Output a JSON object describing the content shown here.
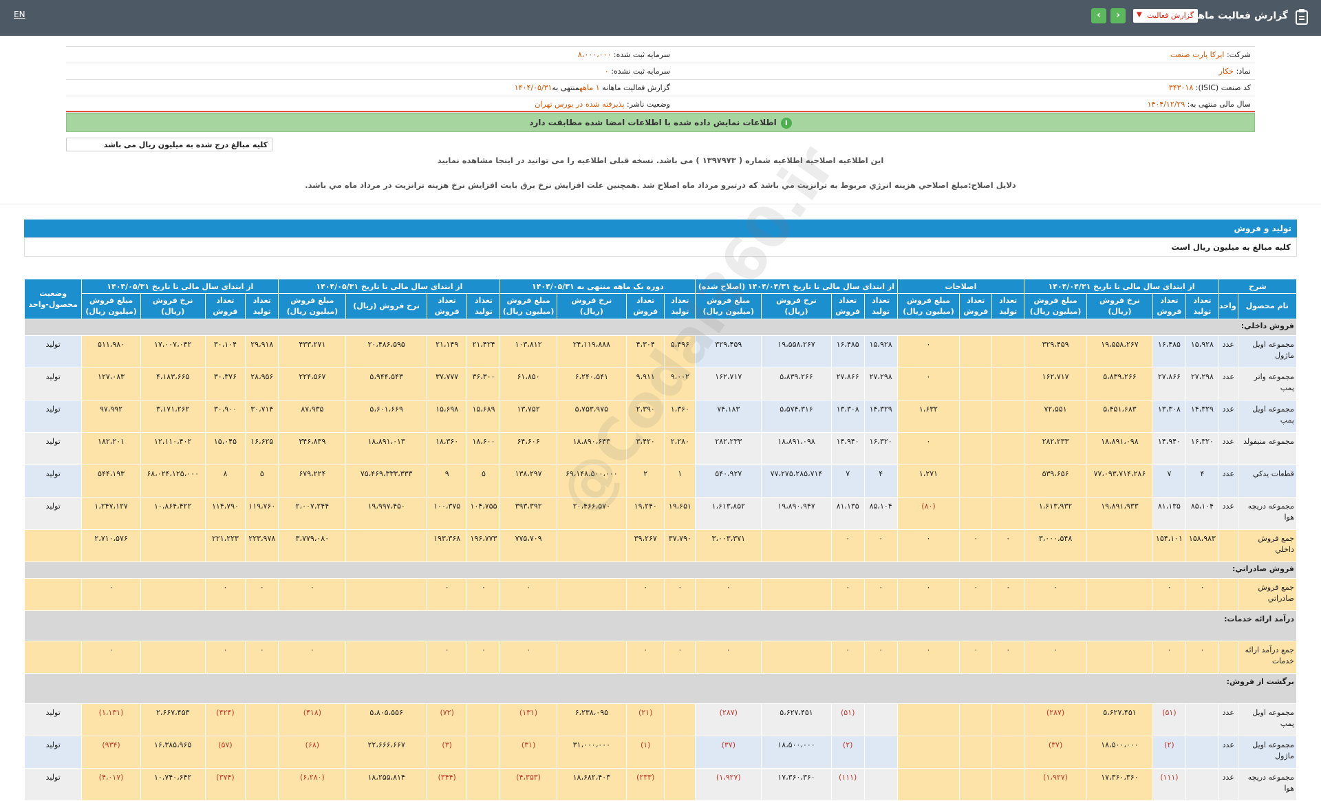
{
  "header": {
    "title": "گزارش فعالیت ماهانه",
    "report_select": "گزارش فعالیت",
    "lang": "EN"
  },
  "info": {
    "company_label": "شرکت:",
    "company": "ایرکا پارت صنعت",
    "capital_reg_label": "سرمایه ثبت شده:",
    "capital_reg": "۸،۰۰۰،۰۰۰",
    "symbol_label": "نماد:",
    "symbol": "خکار",
    "capital_unreg_label": "سرمایه ثبت نشده:",
    "capital_unreg": "۰",
    "isic_label": "کد صنعت (ISIC):",
    "isic": "۳۴۳۰۱۸",
    "period_label": "گزارش فعالیت ماهانه",
    "period_value": "۱ ماهه",
    "period_end_label": "منتهی به",
    "period_end": "۱۴۰۴/۰۵/۳۱",
    "status_label": "وضعیت ناشر:",
    "status": "پذیرفته شده در بورس تهران",
    "fy_label": "سال مالی منتهی به:",
    "fy": "۱۴۰۴/۱۲/۲۹"
  },
  "notice": {
    "match": "اطلاعات نمایش داده شده با اطلاعات امضا شده مطابقت دارد",
    "units": "کلیه مبالغ درج شده به میلیون ریال می باشد",
    "correction": "این اطلاعیه اصلاحیه اطلاعیه شماره ( ۱۳۹۷۹۷۳ ) می باشد. نسخه قبلی اطلاعیه را می توانید در اینجا مشاهده نمایید",
    "reason": "دلایل اصلاح:مبلغ اصلاحي هزينه انرژي مربوط به ترانزيت مي باشد که درتيرو مرداد ماه اصلاح شد .همچنين علت افزايش نرخ برق بابت افزايش نرخ هزينه ترانزيت در مرداد ماه مي باشد."
  },
  "section": {
    "title": "تولید و فروش",
    "subtitle": "کلیه مبالغ به میلیون ریال است"
  },
  "watermark": "@Codal360.ir",
  "table": {
    "groups": [
      "شرح",
      "از ابتدای سال مالی تا تاریخ ۱۴۰۴/۰۴/۳۱",
      "اصلاحات",
      "از ابتدای سال مالی تا تاریخ ۱۴۰۴/۰۴/۳۱ (اصلاح شده)",
      "دوره یک ماهه منتهی به ۱۴۰۴/۰۵/۳۱",
      "از ابتدای سال مالی تا تاریخ ۱۴۰۴/۰۵/۳۱",
      "از ابتدای سال مالی تا تاریخ ۱۴۰۳/۰۵/۳۱",
      "وضعیت محصول-واحد"
    ],
    "subheaders": [
      "نام محصول",
      "واحد",
      "تعداد تولید",
      "تعداد فروش",
      "نرخ فروش (ریال)",
      "مبلغ فروش (میلیون ریال)",
      "تعداد تولید",
      "تعداد فروش",
      "مبلغ فروش (میلیون ریال)",
      "تعداد تولید",
      "تعداد فروش",
      "نرخ فروش (ریال)",
      "مبلغ فروش (میلیون ریال)",
      "تعداد تولید",
      "تعداد فروش",
      "نرخ فروش (ریال)",
      "مبلغ فروش (میلیون ریال)",
      "تعداد تولید",
      "تعداد فروش",
      "نرخ فروش (ریال)",
      "مبلغ فروش (میلیون ریال)",
      "تعداد تولید",
      "تعداد فروش",
      "نرخ فروش (ریال)",
      "مبلغ فروش (میلیون ریال)"
    ],
    "cat_domestic": "فروش داخلي:",
    "cat_export": "فروش صادراتي:",
    "cat_services": "درآمد ارائه خدمات:",
    "cat_returns": "برگشت از فروش:",
    "rows": [
      [
        "مجموعه اویل ماژول",
        "عدد",
        "۱۵،۹۲۸",
        "۱۶،۴۸۵",
        "۱۹،۵۵۸،۲۶۷",
        "۳۲۹،۴۵۹",
        "",
        "",
        "۰",
        "۱۵،۹۲۸",
        "۱۶،۴۸۵",
        "۱۹،۵۵۸،۲۶۷",
        "۳۲۹،۴۵۹",
        "۵،۴۹۶",
        "۴،۳۰۴",
        "۲۴،۱۱۹،۸۸۸",
        "۱۰۳،۸۱۲",
        "۲۱،۴۲۴",
        "۲۱،۱۴۹",
        "۲۰،۴۸۶،۵۹۵",
        "۴۳۳،۲۷۱",
        "۲۹،۹۱۸",
        "۳۰،۱۰۴",
        "۱۷،۰۰۷،۰۴۲",
        "۵۱۱،۹۸۰",
        "تولید"
      ],
      [
        "مجموعه واتر پمپ",
        "عدد",
        "۲۷،۲۹۸",
        "۲۷،۸۶۶",
        "۵،۸۳۹،۲۶۶",
        "۱۶۲،۷۱۷",
        "",
        "",
        "۰",
        "۲۷،۲۹۸",
        "۲۷،۸۶۶",
        "۵،۸۳۹،۲۶۶",
        "۱۶۲،۷۱۷",
        "۹،۰۰۲",
        "۹،۹۱۱",
        "۶،۲۴۰،۵۴۱",
        "۶۱،۸۵۰",
        "۳۶،۳۰۰",
        "۳۷،۷۷۷",
        "۵،۹۴۴،۵۴۳",
        "۲۲۴،۵۶۷",
        "۲۸،۹۵۶",
        "۳۰،۳۷۶",
        "۴،۱۸۳،۶۶۵",
        "۱۲۷،۰۸۳",
        "تولید"
      ],
      [
        "مجموعه اویل پمپ",
        "عدد",
        "۱۴،۳۲۹",
        "۱۳،۳۰۸",
        "۵،۴۵۱،۶۸۳",
        "۷۲،۵۵۱",
        "",
        "",
        "۱،۶۳۲",
        "۱۴،۳۲۹",
        "۱۳،۳۰۸",
        "۵،۵۷۴،۳۱۶",
        "۷۴،۱۸۳",
        "۱،۳۶۰",
        "۲،۳۹۰",
        "۵،۷۵۳،۹۷۵",
        "۱۳،۷۵۲",
        "۱۵،۶۸۹",
        "۱۵،۶۹۸",
        "۵،۶۰۱،۶۶۹",
        "۸۷،۹۳۵",
        "۳۰،۷۱۴",
        "۳۰،۹۰۰",
        "۳،۱۷۱،۲۶۲",
        "۹۷،۹۹۲",
        "تولید"
      ],
      [
        "مجموعه منیفولد",
        "عدد",
        "۱۶،۳۲۰",
        "۱۴،۹۴۰",
        "۱۸،۸۹۱،۰۹۸",
        "۲۸۲،۲۳۳",
        "",
        "",
        "۰",
        "۱۶،۳۲۰",
        "۱۴،۹۴۰",
        "۱۸،۸۹۱،۰۹۸",
        "۲۸۲،۲۳۳",
        "۲،۲۸۰",
        "۳،۴۲۰",
        "۱۸،۸۹۰،۶۴۳",
        "۶۴،۶۰۶",
        "۱۸،۶۰۰",
        "۱۸،۳۶۰",
        "۱۸،۸۹۱،۰۱۳",
        "۳۴۶،۸۳۹",
        "۱۶،۶۲۵",
        "۱۵،۰۴۵",
        "۱۲،۱۱۰،۴۰۲",
        "۱۸۲،۲۰۱",
        "تولید"
      ],
      [
        "قطعات یدکي",
        "عدد",
        "۴",
        "۷",
        "۷۷،۰۹۳،۷۱۴،۲۸۶",
        "۵۳۹،۶۵۶",
        "",
        "",
        "۱،۲۷۱",
        "۴",
        "۷",
        "۷۷،۲۷۵،۲۸۵،۷۱۴",
        "۵۴۰،۹۲۷",
        "۱",
        "۲",
        "۶۹،۱۴۸،۵۰۰،۰۰۰",
        "۱۳۸،۲۹۷",
        "۵",
        "۹",
        "۷۵،۴۶۹،۳۳۳،۳۳۳",
        "۶۷۹،۲۲۴",
        "۵",
        "۸",
        "۶۸،۰۲۴،۱۲۵،۰۰۰",
        "۵۴۴،۱۹۳",
        "تولید"
      ],
      [
        "مجموعه دریچه هوا",
        "عدد",
        "۸۵،۱۰۴",
        "۸۱،۱۳۵",
        "۱۹،۸۹۱،۹۳۳",
        "۱،۶۱۳،۹۳۲",
        "",
        "",
        "(۸۰)",
        "۸۵،۱۰۴",
        "۸۱،۱۳۵",
        "۱۹،۸۹۰،۹۴۷",
        "۱،۶۱۳،۸۵۲",
        "۱۹،۶۵۱",
        "۱۹،۲۴۰",
        "۲۰،۴۶۶،۵۷۰",
        "۳۹۳،۳۹۲",
        "۱۰۴،۷۵۵",
        "۱۰۰،۳۷۵",
        "۱۹،۹۹۷،۴۵۰",
        "۲،۰۰۷،۲۴۴",
        "۱۱۹،۷۶۰",
        "۱۱۴،۷۹۰",
        "۱۰،۸۶۴،۴۲۲",
        "۱،۲۴۷،۱۲۷",
        "تولید"
      ]
    ],
    "total_domestic": [
      "جمع فروش داخلي",
      "",
      "۱۵۸،۹۸۳",
      "۱۵۴،۱۰۱",
      "",
      "۳،۰۰۰،۵۴۸",
      "۰",
      "۰",
      "۰",
      "۰",
      "۰",
      "",
      "۳،۰۰۳،۳۷۱",
      "۳۷،۷۹۰",
      "۳۹،۲۶۷",
      "",
      "۷۷۵،۷۰۹",
      "۱۹۶،۷۷۳",
      "۱۹۳،۳۶۸",
      "",
      "۳،۷۷۹،۰۸۰",
      "۲۲۳،۹۷۸",
      "۲۲۱،۲۲۳",
      "",
      "۲،۷۱۰،۵۷۶",
      ""
    ],
    "total_export": [
      "جمع فروش صادراتي",
      "",
      "۰",
      "۰",
      "",
      "۰",
      "۰",
      "۰",
      "۰",
      "۰",
      "۰",
      "",
      "۰",
      "۰",
      "۰",
      "",
      "۰",
      "۰",
      "۰",
      "",
      "۰",
      "۰",
      "۰",
      "",
      "۰",
      ""
    ],
    "total_services": [
      "جمع درآمد ارائه خدمات",
      "",
      "۰",
      "۰",
      "",
      "۰",
      "۰",
      "۰",
      "۰",
      "۰",
      "۰",
      "",
      "۰",
      "۰",
      "۰",
      "",
      "۰",
      "۰",
      "۰",
      "",
      "۰",
      "۰",
      "۰",
      "",
      "۰",
      ""
    ],
    "returns": [
      [
        "مجموعه اویل پمپ",
        "عدد",
        "",
        "(۵۱)",
        "۵،۶۲۷،۴۵۱",
        "(۲۸۷)",
        "",
        "",
        "",
        "",
        "(۵۱)",
        "۵،۶۲۷،۴۵۱",
        "(۲۸۷)",
        "",
        "(۲۱)",
        "۶،۲۳۸،۰۹۵",
        "(۱۳۱)",
        "",
        "(۷۲)",
        "۵،۸۰۵،۵۵۶",
        "(۴۱۸)",
        "",
        "(۴۲۴)",
        "۲،۶۶۷،۴۵۳",
        "(۱،۱۳۱)",
        "تولید"
      ],
      [
        "مجموعه اویل ماژول",
        "عدد",
        "",
        "(۲)",
        "۱۸،۵۰۰،۰۰۰",
        "(۳۷)",
        "",
        "",
        "",
        "",
        "(۲)",
        "۱۸،۵۰۰،۰۰۰",
        "(۳۷)",
        "",
        "(۱)",
        "۳۱،۰۰۰،۰۰۰",
        "(۳۱)",
        "",
        "(۳)",
        "۲۲،۶۶۶،۶۶۷",
        "(۶۸)",
        "",
        "(۵۷)",
        "۱۶،۳۸۵،۹۶۵",
        "(۹۳۴)",
        "تولید"
      ],
      [
        "مجموعه دریچه هوا",
        "عدد",
        "",
        "(۱۱۱)",
        "۱۷،۳۶۰،۳۶۰",
        "(۱،۹۲۷)",
        "",
        "",
        "",
        "",
        "(۱۱۱)",
        "۱۷،۳۶۰،۳۶۰",
        "(۱،۹۲۷)",
        "",
        "(۲۳۳)",
        "۱۸،۶۸۲،۴۰۳",
        "(۴،۳۵۳)",
        "",
        "(۳۴۴)",
        "۱۸،۲۵۵،۸۱۴",
        "(۶،۲۸۰)",
        "",
        "(۳۷۴)",
        "۱۰،۷۴۰،۶۴۲",
        "(۴،۰۱۷)",
        "تولید"
      ]
    ]
  }
}
